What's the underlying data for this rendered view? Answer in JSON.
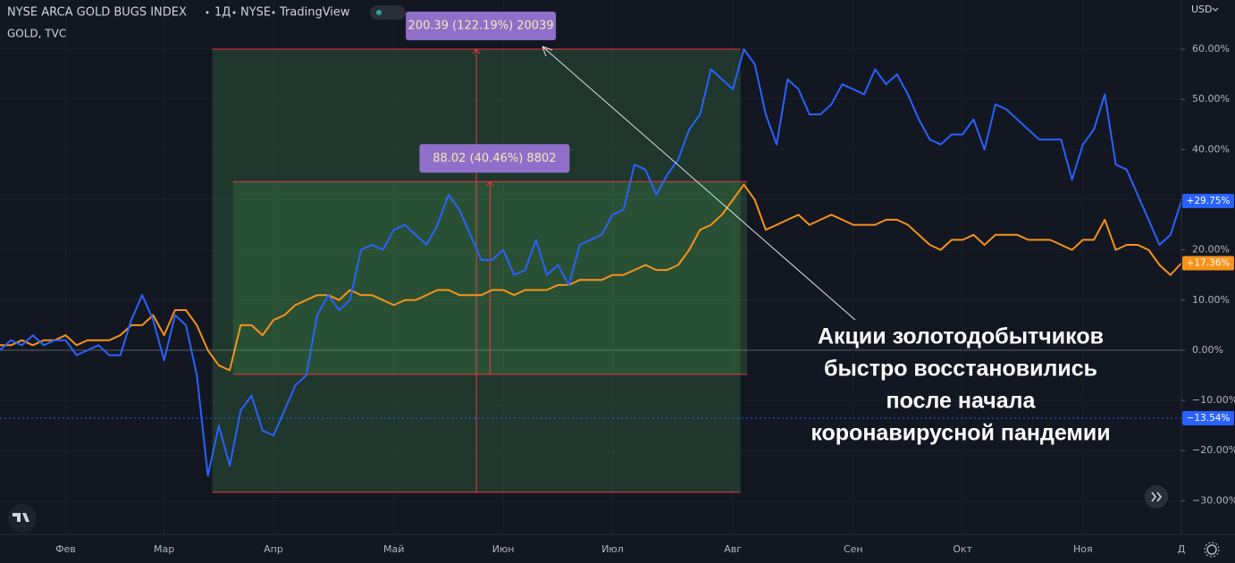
{
  "chart_data": {
    "type": "line",
    "header": {
      "interval": "1Д",
      "exchange": "NYSE",
      "source": "TradingView",
      "currency": "USD"
    },
    "categories": [
      null,
      null,
      null,
      null,
      null,
      null,
      "Фев",
      null,
      null,
      null,
      null,
      null,
      null,
      null,
      null,
      "Мар",
      null,
      null,
      null,
      null,
      null,
      null,
      null,
      null,
      null,
      "Апр",
      null,
      null,
      null,
      null,
      null,
      null,
      null,
      null,
      null,
      null,
      "Май",
      null,
      null,
      null,
      null,
      null,
      null,
      null,
      null,
      null,
      "Июн",
      null,
      null,
      null,
      null,
      null,
      null,
      null,
      null,
      null,
      "Июл",
      null,
      null,
      null,
      null,
      null,
      null,
      null,
      null,
      null,
      null,
      "Авг",
      null,
      null,
      null,
      null,
      null,
      null,
      null,
      null,
      null,
      null,
      "Сен",
      null,
      null,
      null,
      null,
      null,
      null,
      null,
      null,
      null,
      "Окт",
      null,
      null,
      null,
      null,
      null,
      null,
      null,
      null,
      null,
      null,
      "Ноя",
      null,
      null,
      null,
      null,
      null,
      null,
      null,
      null,
      "Д"
    ],
    "series": [
      {
        "name": "NYSE ARCA GOLD BUGS INDEX",
        "color": "#2962ff",
        "last_label": "+29.75%",
        "values": [
          0,
          2,
          1,
          3,
          1,
          2,
          2,
          -1,
          0,
          1,
          -1,
          -1,
          6,
          11,
          6,
          -2,
          7,
          5,
          -5,
          -25,
          -15,
          -23,
          -12,
          -9,
          -16,
          -17,
          -12,
          -7,
          -5,
          7,
          11,
          8,
          10,
          20,
          21,
          20,
          24,
          25,
          23,
          21,
          25,
          31,
          28,
          23,
          18,
          18,
          20,
          15,
          16,
          22,
          15,
          17,
          13,
          21,
          22,
          23,
          27,
          28,
          37,
          36,
          31,
          35,
          38,
          44,
          47,
          56,
          54,
          52,
          60,
          57,
          47,
          41,
          54,
          52,
          47,
          47,
          49,
          53,
          52,
          51,
          56,
          53,
          55,
          51,
          46,
          42,
          41,
          43,
          43,
          46,
          40,
          49,
          48,
          46,
          44,
          42,
          42,
          42,
          34,
          41,
          44,
          51,
          37,
          36,
          31,
          26,
          21,
          23,
          29.75
        ]
      },
      {
        "name": "GOLD, TVC",
        "color": "#f7931a",
        "last_label": "+17.36%",
        "values": [
          1,
          1,
          2,
          1,
          2,
          2,
          3,
          1,
          2,
          2,
          2,
          3,
          5,
          5,
          7,
          3,
          8,
          8,
          5,
          0,
          -3,
          -4,
          5,
          5,
          3,
          6,
          7,
          9,
          10,
          11,
          11,
          10,
          12,
          11,
          11,
          10,
          9,
          10,
          10,
          11,
          12,
          12,
          11,
          11,
          11,
          12,
          12,
          11,
          12,
          12,
          12,
          13,
          13,
          14,
          14,
          14,
          15,
          15,
          16,
          17,
          16,
          16,
          17,
          20,
          24,
          25,
          27,
          30,
          33,
          30,
          24,
          25,
          26,
          27,
          25,
          26,
          27,
          26,
          25,
          25,
          25,
          26,
          26,
          25,
          23,
          21,
          20,
          22,
          22,
          23,
          21,
          23,
          23,
          23,
          22,
          22,
          22,
          21,
          20,
          22,
          22,
          26,
          20,
          21,
          21,
          20,
          17,
          15,
          17.36
        ]
      }
    ],
    "price_line": {
      "value": -13.54,
      "label": "−13.54%",
      "color": "#2962ff"
    },
    "ylim": [
      -36.7,
      69.8
    ],
    "yticks": [
      {
        "value": 60,
        "label": "60.00%"
      },
      {
        "value": 50,
        "label": "50.00%"
      },
      {
        "value": 40,
        "label": "40.00%"
      },
      {
        "value": 30,
        "label": "30.00%"
      },
      {
        "value": 20,
        "label": "20.00%"
      },
      {
        "value": 10,
        "label": "10.00%"
      },
      {
        "value": 0,
        "label": "0.00%"
      },
      {
        "value": -10,
        "label": "−10.00%"
      },
      {
        "value": -20,
        "label": "−20.00%"
      },
      {
        "value": -30,
        "label": "−30.00%"
      }
    ],
    "grid": true,
    "measures": [
      {
        "label": "200.39 (122.19%) 20039",
        "y_range": [
          -28.3,
          60
        ],
        "x_range": [
          19.4,
          67.7
        ]
      },
      {
        "label": "88.02 (40.46%) 8802",
        "y_range": [
          -4.8,
          33.6
        ],
        "x_range": [
          21.3,
          68.3
        ]
      }
    ],
    "annotation_lines": [
      "Акции золотодобытчиков",
      "быстро восстановились",
      "после начала",
      "коронавирусной пандемии"
    ]
  }
}
